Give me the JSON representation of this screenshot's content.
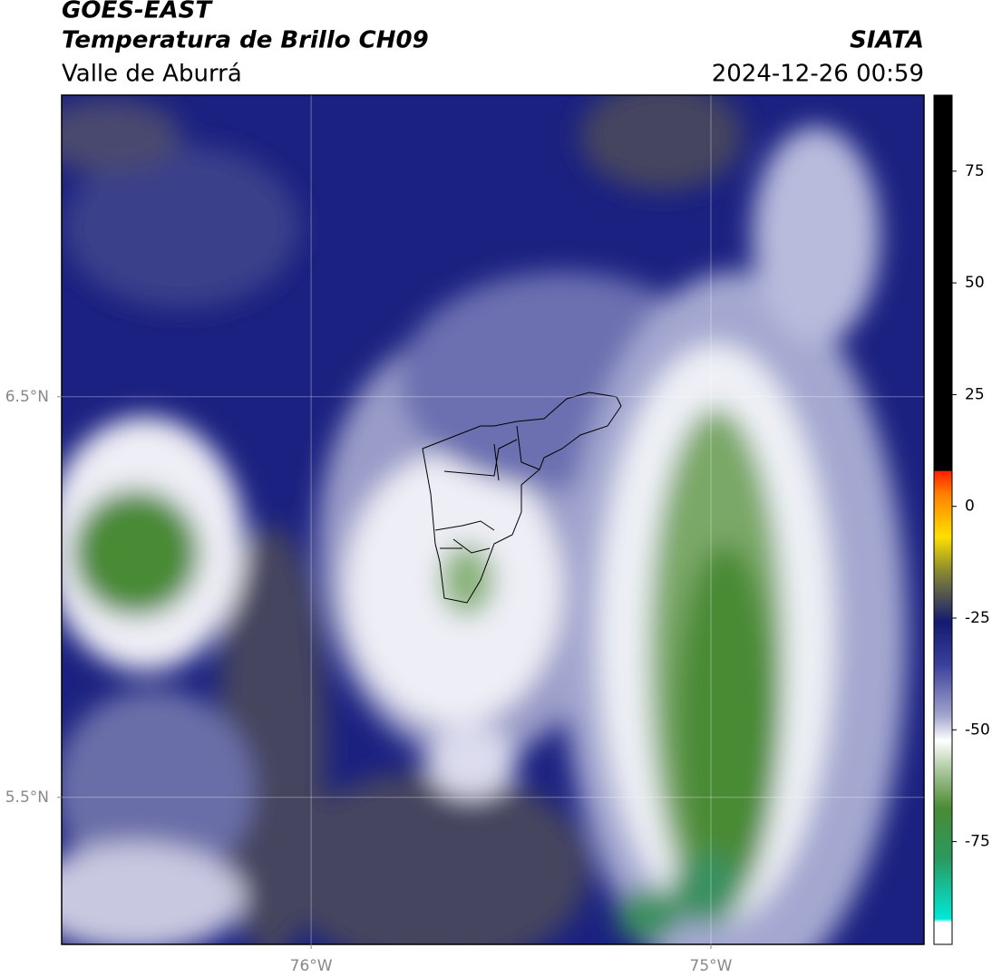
{
  "header": {
    "title": "GOES-EAST",
    "subtitle": "Temperatura de Brillo CH09",
    "region": "Valle de Aburrá",
    "source": "SIATA",
    "datetime": "2024-12-26 00:59"
  },
  "map": {
    "xlim": [
      -76.624,
      -74.467
    ],
    "ylim": [
      5.133,
      7.253
    ],
    "xticks": [
      {
        "value": -76,
        "label": "76°W"
      },
      {
        "value": -75,
        "label": "75°W"
      }
    ],
    "yticks": [
      {
        "value": 6.5,
        "label": "6.5°N"
      },
      {
        "value": 5.5,
        "label": "5.5°N"
      }
    ],
    "grid": true
  },
  "colorbar": {
    "lim": [
      -98,
      92
    ],
    "ticks": [
      75,
      50,
      25,
      0,
      -25,
      -50,
      -75
    ]
  }
}
